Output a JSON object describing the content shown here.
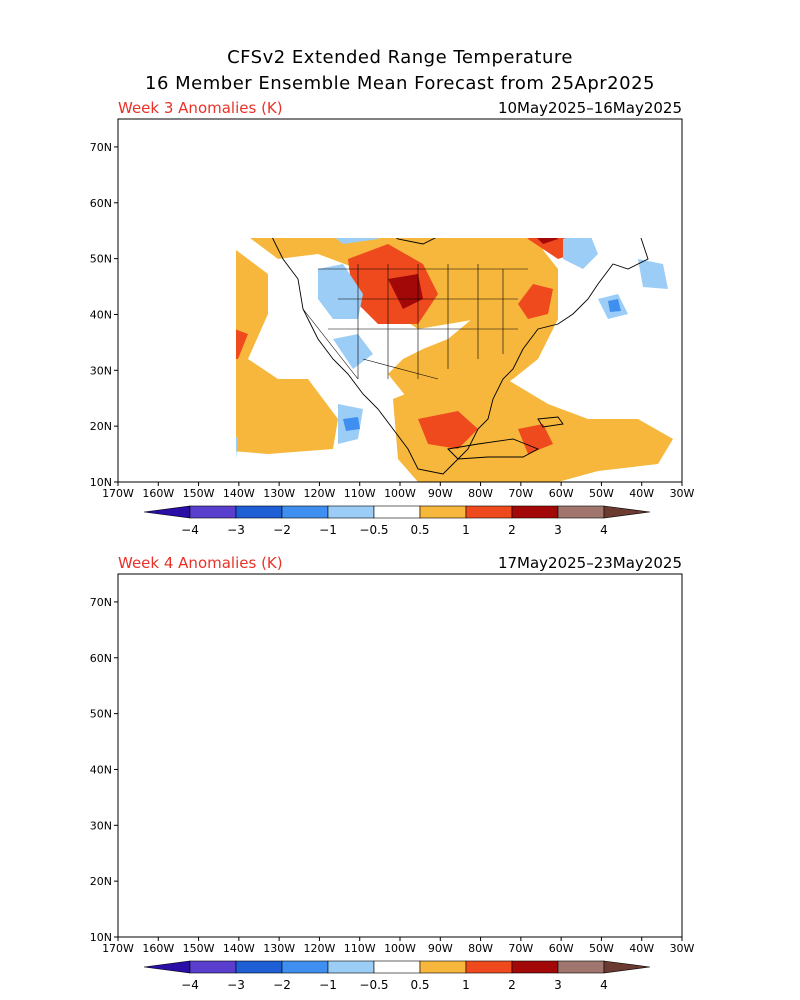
{
  "title_line1": "CFSv2 Extended Range Temperature",
  "title_line2": "16 Member Ensemble Mean Forecast from 25Apr2025",
  "panels": [
    {
      "label": "Week 3 Anomalies (K)",
      "dates": "10May2025–16May2025"
    },
    {
      "label": "Week 4 Anomalies (K)",
      "dates": "17May2025–23May2025"
    }
  ],
  "lon_ticks": [
    "170W",
    "160W",
    "150W",
    "140W",
    "130W",
    "120W",
    "110W",
    "100W",
    "90W",
    "80W",
    "70W",
    "60W",
    "50W",
    "40W",
    "30W"
  ],
  "lat_ticks": [
    "10N",
    "20N",
    "30N",
    "40N",
    "50N",
    "60N",
    "70N"
  ],
  "colorbar": {
    "labels": [
      "−4",
      "−3",
      "−2",
      "−1",
      "−0.5",
      "0.5",
      "1",
      "2",
      "3",
      "4"
    ],
    "colors": [
      "#2b0ea6",
      "#5a3fcf",
      "#1e5fd6",
      "#3f8ff0",
      "#9ccdf6",
      "#ffffff",
      "#f6b73c",
      "#ef4a1e",
      "#a30808",
      "#a0756e",
      "#6b3a30"
    ]
  }
}
